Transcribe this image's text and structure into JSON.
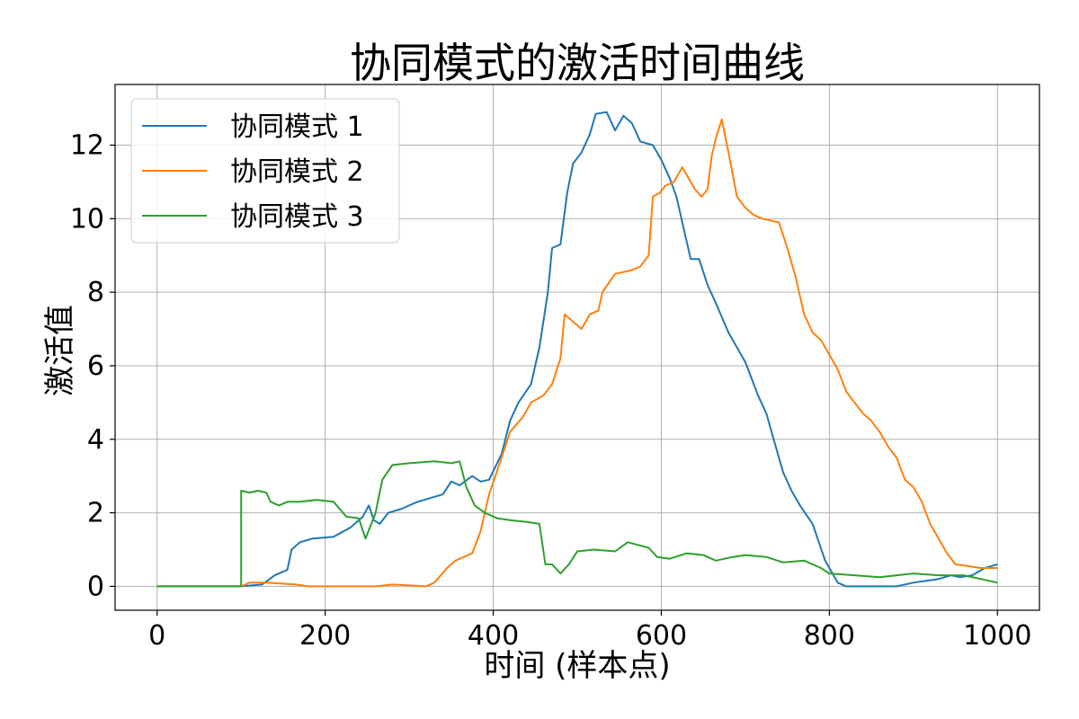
{
  "chart_data": {
    "type": "line",
    "title": "协同模式的激活时间曲线",
    "xlabel": "时间 (样本点)",
    "ylabel": "激活值",
    "xlim": [
      -50,
      1050
    ],
    "ylim": [
      -0.65,
      13.65
    ],
    "xticks": [
      0,
      200,
      400,
      600,
      800,
      1000
    ],
    "yticks": [
      0,
      2,
      4,
      6,
      8,
      10,
      12
    ],
    "xtick_labels": [
      "0",
      "200",
      "400",
      "600",
      "800",
      "1000"
    ],
    "ytick_labels": [
      "0",
      "2",
      "4",
      "6",
      "8",
      "10",
      "12"
    ],
    "grid": true,
    "legend_position": "top-left",
    "series": [
      {
        "name": "协同模式 1",
        "color": "#1f77b4",
        "points": [
          [
            0,
            0
          ],
          [
            100,
            0
          ],
          [
            125,
            0.05
          ],
          [
            140,
            0.3
          ],
          [
            155,
            0.45
          ],
          [
            160,
            1.0
          ],
          [
            170,
            1.2
          ],
          [
            185,
            1.3
          ],
          [
            210,
            1.35
          ],
          [
            230,
            1.6
          ],
          [
            245,
            1.9
          ],
          [
            252,
            2.2
          ],
          [
            258,
            1.8
          ],
          [
            265,
            1.7
          ],
          [
            275,
            2.0
          ],
          [
            290,
            2.1
          ],
          [
            310,
            2.3
          ],
          [
            340,
            2.5
          ],
          [
            350,
            2.85
          ],
          [
            360,
            2.75
          ],
          [
            375,
            3.0
          ],
          [
            385,
            2.85
          ],
          [
            395,
            2.9
          ],
          [
            410,
            3.6
          ],
          [
            420,
            4.5
          ],
          [
            430,
            5.0
          ],
          [
            445,
            5.5
          ],
          [
            455,
            6.5
          ],
          [
            465,
            8.0
          ],
          [
            470,
            9.2
          ],
          [
            480,
            9.3
          ],
          [
            488,
            10.7
          ],
          [
            495,
            11.5
          ],
          [
            505,
            11.8
          ],
          [
            515,
            12.3
          ],
          [
            522,
            12.85
          ],
          [
            535,
            12.9
          ],
          [
            545,
            12.4
          ],
          [
            555,
            12.8
          ],
          [
            565,
            12.6
          ],
          [
            575,
            12.1
          ],
          [
            590,
            12.0
          ],
          [
            600,
            11.6
          ],
          [
            610,
            11.1
          ],
          [
            618,
            10.6
          ],
          [
            628,
            9.6
          ],
          [
            635,
            8.9
          ],
          [
            645,
            8.9
          ],
          [
            655,
            8.2
          ],
          [
            665,
            7.7
          ],
          [
            680,
            6.9
          ],
          [
            690,
            6.5
          ],
          [
            700,
            6.1
          ],
          [
            705,
            5.8
          ],
          [
            715,
            5.2
          ],
          [
            725,
            4.7
          ],
          [
            735,
            3.9
          ],
          [
            745,
            3.1
          ],
          [
            755,
            2.6
          ],
          [
            765,
            2.2
          ],
          [
            780,
            1.7
          ],
          [
            795,
            0.7
          ],
          [
            810,
            0.1
          ],
          [
            820,
            0
          ],
          [
            880,
            0
          ],
          [
            900,
            0.1
          ],
          [
            930,
            0.2
          ],
          [
            945,
            0.3
          ],
          [
            955,
            0.25
          ],
          [
            970,
            0.3
          ],
          [
            985,
            0.5
          ],
          [
            1000,
            0.6
          ]
        ]
      },
      {
        "name": "协同模式 2",
        "color": "#ff7f0e",
        "points": [
          [
            0,
            0
          ],
          [
            100,
            0
          ],
          [
            110,
            0.1
          ],
          [
            130,
            0.1
          ],
          [
            165,
            0.05
          ],
          [
            180,
            0
          ],
          [
            230,
            0
          ],
          [
            260,
            0
          ],
          [
            280,
            0.05
          ],
          [
            320,
            0
          ],
          [
            330,
            0.1
          ],
          [
            345,
            0.5
          ],
          [
            355,
            0.7
          ],
          [
            375,
            0.9
          ],
          [
            385,
            1.5
          ],
          [
            395,
            2.5
          ],
          [
            410,
            3.5
          ],
          [
            420,
            4.2
          ],
          [
            435,
            4.6
          ],
          [
            445,
            5.0
          ],
          [
            460,
            5.2
          ],
          [
            470,
            5.5
          ],
          [
            480,
            6.2
          ],
          [
            485,
            7.4
          ],
          [
            495,
            7.2
          ],
          [
            505,
            7.0
          ],
          [
            515,
            7.4
          ],
          [
            525,
            7.5
          ],
          [
            530,
            8.0
          ],
          [
            545,
            8.5
          ],
          [
            565,
            8.6
          ],
          [
            575,
            8.7
          ],
          [
            585,
            9.0
          ],
          [
            590,
            10.6
          ],
          [
            598,
            10.7
          ],
          [
            605,
            10.9
          ],
          [
            615,
            11.0
          ],
          [
            625,
            11.4
          ],
          [
            630,
            11.2
          ],
          [
            640,
            10.8
          ],
          [
            648,
            10.6
          ],
          [
            655,
            10.8
          ],
          [
            660,
            11.7
          ],
          [
            665,
            12.2
          ],
          [
            672,
            12.7
          ],
          [
            680,
            11.8
          ],
          [
            690,
            10.6
          ],
          [
            700,
            10.3
          ],
          [
            710,
            10.1
          ],
          [
            720,
            10.0
          ],
          [
            740,
            9.9
          ],
          [
            750,
            9.2
          ],
          [
            760,
            8.4
          ],
          [
            770,
            7.4
          ],
          [
            780,
            6.9
          ],
          [
            790,
            6.7
          ],
          [
            800,
            6.3
          ],
          [
            810,
            5.9
          ],
          [
            820,
            5.3
          ],
          [
            830,
            5.0
          ],
          [
            840,
            4.7
          ],
          [
            850,
            4.5
          ],
          [
            860,
            4.2
          ],
          [
            870,
            3.8
          ],
          [
            880,
            3.5
          ],
          [
            890,
            2.9
          ],
          [
            900,
            2.7
          ],
          [
            910,
            2.3
          ],
          [
            920,
            1.7
          ],
          [
            930,
            1.3
          ],
          [
            940,
            0.9
          ],
          [
            950,
            0.6
          ],
          [
            965,
            0.55
          ],
          [
            980,
            0.5
          ],
          [
            1000,
            0.5
          ]
        ]
      },
      {
        "name": "协同模式 3",
        "color": "#2ca02c",
        "points": [
          [
            0,
            0
          ],
          [
            100,
            0
          ],
          [
            100,
            2.6
          ],
          [
            110,
            2.55
          ],
          [
            120,
            2.6
          ],
          [
            130,
            2.55
          ],
          [
            135,
            2.3
          ],
          [
            145,
            2.2
          ],
          [
            155,
            2.3
          ],
          [
            170,
            2.3
          ],
          [
            190,
            2.35
          ],
          [
            210,
            2.3
          ],
          [
            225,
            1.9
          ],
          [
            240,
            1.85
          ],
          [
            248,
            1.3
          ],
          [
            255,
            1.7
          ],
          [
            260,
            2.0
          ],
          [
            268,
            2.9
          ],
          [
            280,
            3.3
          ],
          [
            300,
            3.35
          ],
          [
            330,
            3.4
          ],
          [
            350,
            3.35
          ],
          [
            360,
            3.4
          ],
          [
            368,
            2.7
          ],
          [
            378,
            2.2
          ],
          [
            390,
            2.0
          ],
          [
            405,
            1.85
          ],
          [
            420,
            1.8
          ],
          [
            440,
            1.75
          ],
          [
            455,
            1.7
          ],
          [
            462,
            0.6
          ],
          [
            470,
            0.6
          ],
          [
            480,
            0.35
          ],
          [
            490,
            0.6
          ],
          [
            500,
            0.95
          ],
          [
            520,
            1.0
          ],
          [
            545,
            0.95
          ],
          [
            560,
            1.2
          ],
          [
            585,
            1.05
          ],
          [
            595,
            0.8
          ],
          [
            610,
            0.75
          ],
          [
            630,
            0.9
          ],
          [
            650,
            0.85
          ],
          [
            665,
            0.7
          ],
          [
            685,
            0.8
          ],
          [
            700,
            0.85
          ],
          [
            725,
            0.8
          ],
          [
            745,
            0.65
          ],
          [
            770,
            0.7
          ],
          [
            790,
            0.5
          ],
          [
            800,
            0.35
          ],
          [
            830,
            0.3
          ],
          [
            860,
            0.25
          ],
          [
            880,
            0.3
          ],
          [
            900,
            0.35
          ],
          [
            930,
            0.3
          ],
          [
            960,
            0.3
          ],
          [
            980,
            0.2
          ],
          [
            1000,
            0.1
          ]
        ]
      }
    ]
  }
}
